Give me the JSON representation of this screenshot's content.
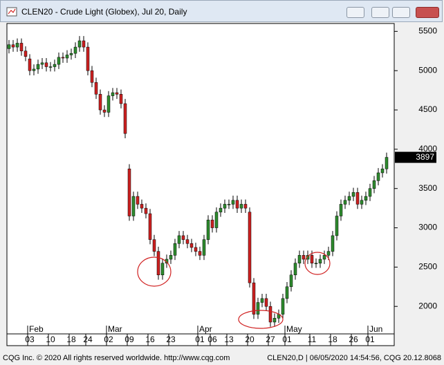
{
  "window": {
    "title": "CLEN20 - Crude Light (Globex), Jul 20, Daily"
  },
  "footer": {
    "left": "CQG Inc. © 2020 All rights reserved worldwide. http://www.cqg.com",
    "right": "CLEN20,D | 06/05/2020 14:54:56, CQG 20.12.8068"
  },
  "chart_data": {
    "type": "candlestick",
    "up_color": "#2e8b2e",
    "down_color": "#cc2020",
    "open": [
      5280,
      5330,
      5300,
      5350,
      5250,
      5150,
      5000,
      5020,
      5080,
      5100,
      5050,
      5050,
      5080,
      5170,
      5160,
      5200,
      5220,
      5300,
      5380,
      5300,
      5000,
      4850,
      4700,
      4500,
      4470,
      4680,
      4720,
      4700,
      4580,
      3750,
      3150,
      3400,
      3300,
      3250,
      3180,
      2850,
      2700,
      2400,
      2550,
      2600,
      2650,
      2800,
      2900,
      2850,
      2800,
      2750,
      2700,
      2650,
      2850,
      3100,
      3000,
      3200,
      3250,
      3300,
      3300,
      3350,
      3250,
      3300,
      3200,
      2300,
      1900,
      2050,
      2100,
      2000,
      1800,
      1850,
      1900,
      2100,
      2250,
      2400,
      2550,
      2650,
      2600,
      2650,
      2550,
      2550,
      2600,
      2650,
      2700,
      2900,
      3150,
      3300,
      3350,
      3400,
      3450,
      3300,
      3350,
      3400,
      3500,
      3600,
      3700,
      3750
    ],
    "high": [
      5390,
      5390,
      5410,
      5410,
      5310,
      5210,
      5080,
      5140,
      5160,
      5160,
      5110,
      5140,
      5230,
      5230,
      5260,
      5280,
      5360,
      5440,
      5440,
      5360,
      5060,
      4910,
      4760,
      4560,
      4740,
      4780,
      4780,
      4760,
      4640,
      3810,
      3460,
      3460,
      3360,
      3310,
      3240,
      2910,
      2760,
      2610,
      2660,
      2710,
      2860,
      2960,
      2960,
      2910,
      2860,
      2810,
      2760,
      2910,
      3160,
      3160,
      3260,
      3310,
      3360,
      3360,
      3410,
      3410,
      3360,
      3360,
      3260,
      2360,
      2110,
      2160,
      2160,
      2060,
      1910,
      1960,
      2160,
      2310,
      2460,
      2610,
      2710,
      2710,
      2710,
      2710,
      2610,
      2660,
      2710,
      2760,
      2960,
      3210,
      3360,
      3410,
      3460,
      3510,
      3510,
      3410,
      3460,
      3560,
      3660,
      3760,
      3810,
      3957
    ],
    "low": [
      5220,
      5240,
      5240,
      5190,
      5120,
      4940,
      4940,
      4960,
      5020,
      4990,
      4990,
      4990,
      5020,
      5100,
      5100,
      5140,
      5160,
      5240,
      5240,
      4940,
      4790,
      4640,
      4440,
      4410,
      4410,
      4620,
      4640,
      4520,
      4140,
      3090,
      3090,
      3240,
      3190,
      3120,
      2790,
      2640,
      2340,
      2340,
      2490,
      2540,
      2590,
      2740,
      2790,
      2740,
      2690,
      2640,
      2590,
      2590,
      2790,
      2940,
      2940,
      3140,
      3190,
      3240,
      3240,
      3190,
      3190,
      3190,
      2240,
      1840,
      1840,
      1990,
      1940,
      1740,
      1740,
      1790,
      1840,
      2040,
      2190,
      2340,
      2490,
      2540,
      2540,
      2490,
      2490,
      2490,
      2540,
      2590,
      2640,
      2840,
      3090,
      3240,
      3290,
      3340,
      3240,
      3240,
      3290,
      3340,
      3440,
      3540,
      3640,
      3690
    ],
    "close": [
      5330,
      5300,
      5350,
      5250,
      5180,
      5000,
      5020,
      5080,
      5100,
      5050,
      5050,
      5080,
      5170,
      5160,
      5200,
      5220,
      5300,
      5380,
      5300,
      5000,
      4850,
      4700,
      4500,
      4470,
      4680,
      4720,
      4700,
      4580,
      4200,
      3150,
      3400,
      3300,
      3250,
      3180,
      2850,
      2700,
      2400,
      2550,
      2600,
      2650,
      2800,
      2900,
      2850,
      2800,
      2750,
      2700,
      2650,
      2850,
      3100,
      3000,
      3200,
      3250,
      3300,
      3300,
      3350,
      3250,
      3300,
      3250,
      2300,
      1900,
      2050,
      2100,
      2000,
      1800,
      1850,
      1900,
      2100,
      2250,
      2400,
      2550,
      2650,
      2600,
      2650,
      2550,
      2550,
      2600,
      2650,
      2700,
      2900,
      3150,
      3300,
      3350,
      3400,
      3450,
      3300,
      3350,
      3400,
      3500,
      3600,
      3700,
      3750,
      3897
    ],
    "ylim": [
      1650,
      5600
    ],
    "yticks": [
      2000,
      2500,
      3000,
      3500,
      4000,
      4500,
      5000,
      5500
    ],
    "xticks": [
      {
        "value": 5,
        "label": "03"
      },
      {
        "value": 10,
        "label": "10"
      },
      {
        "value": 15,
        "label": "18"
      },
      {
        "value": 19,
        "label": "24"
      },
      {
        "value": 24,
        "label": "02"
      },
      {
        "value": 29,
        "label": "09"
      },
      {
        "value": 34,
        "label": "16"
      },
      {
        "value": 39,
        "label": "23"
      },
      {
        "value": 46,
        "label": "01"
      },
      {
        "value": 49,
        "label": "06"
      },
      {
        "value": 53,
        "label": "13"
      },
      {
        "value": 58,
        "label": "20"
      },
      {
        "value": 63,
        "label": "27"
      },
      {
        "value": 67,
        "label": "01"
      },
      {
        "value": 73,
        "label": "11"
      },
      {
        "value": 78,
        "label": "18"
      },
      {
        "value": 83,
        "label": "26"
      },
      {
        "value": 87,
        "label": "01"
      }
    ],
    "months": [
      {
        "value": 5,
        "label": "Feb"
      },
      {
        "value": 24,
        "label": "Mar"
      },
      {
        "value": 46,
        "label": "Apr"
      },
      {
        "value": 67,
        "label": "May"
      },
      {
        "value": 87,
        "label": "Jun"
      }
    ]
  }
}
